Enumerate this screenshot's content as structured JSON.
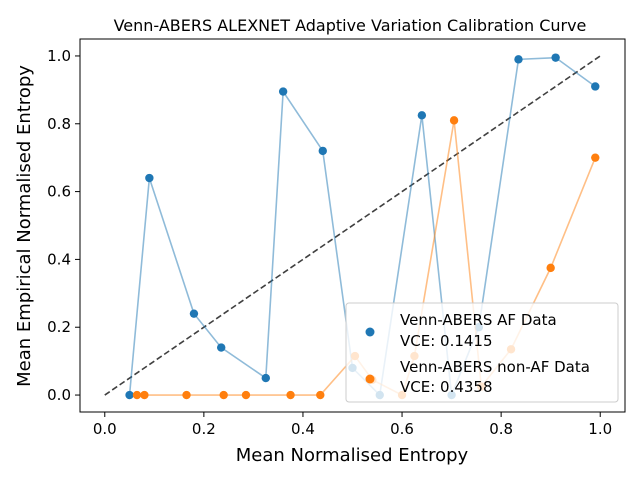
{
  "chart_data": {
    "type": "line",
    "title": "Venn-ABERS ALEXNET Adaptive Variation Calibration Curve",
    "xlabel": "Mean Normalised Entropy",
    "ylabel": "Mean Empirical Normalised Entropy",
    "xlim": [
      -0.05,
      1.05
    ],
    "ylim": [
      -0.05,
      1.05
    ],
    "xticks": [
      0.0,
      0.2,
      0.4,
      0.6,
      0.8,
      1.0
    ],
    "yticks": [
      0.0,
      0.2,
      0.4,
      0.6,
      0.8,
      1.0
    ],
    "xtick_labels": [
      "0.0",
      "0.2",
      "0.4",
      "0.6",
      "0.8",
      "1.0"
    ],
    "ytick_labels": [
      "0.0",
      "0.2",
      "0.4",
      "0.6",
      "0.8",
      "1.0"
    ],
    "grid": false,
    "legend_position": "bottom-right",
    "reference_line": {
      "x": [
        0,
        1
      ],
      "y": [
        0,
        1
      ],
      "color": "#404040",
      "style": "dashed"
    },
    "series": [
      {
        "name": "Venn-ABERS AF Data",
        "legend_lines": [
          "Venn-ABERS AF Data",
          "VCE: 0.1415"
        ],
        "color": "#1f77b4",
        "x": [
          0.05,
          0.09,
          0.18,
          0.235,
          0.325,
          0.36,
          0.44,
          0.5,
          0.555,
          0.64,
          0.7,
          0.755,
          0.835,
          0.91,
          0.99
        ],
        "y": [
          0.0,
          0.64,
          0.24,
          0.14,
          0.05,
          0.895,
          0.72,
          0.08,
          0.0,
          0.825,
          0.0,
          0.2,
          0.99,
          0.995,
          0.91
        ]
      },
      {
        "name": "Venn-ABERS non-AF Data",
        "legend_lines": [
          "Venn-ABERS non-AF Data",
          "VCE: 0.4358"
        ],
        "color": "#ff7f0e",
        "x": [
          0.065,
          0.08,
          0.165,
          0.24,
          0.285,
          0.375,
          0.435,
          0.505,
          0.54,
          0.6,
          0.625,
          0.705,
          0.76,
          0.82,
          0.9,
          0.99
        ],
        "y": [
          0.0,
          0.0,
          0.0,
          0.0,
          0.0,
          0.0,
          0.0,
          0.115,
          0.045,
          0.0,
          0.115,
          0.81,
          0.025,
          0.135,
          0.375,
          0.7
        ]
      }
    ]
  }
}
